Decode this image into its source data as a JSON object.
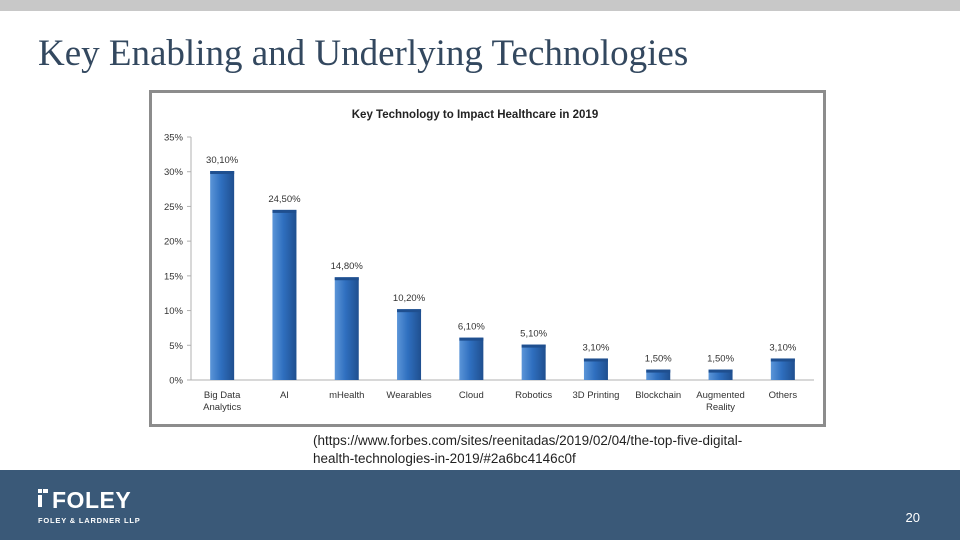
{
  "slide": {
    "title": "Key Enabling and Underlying Technologies",
    "source_line1": "(https://www.forbes.com/sites/reenitadas/2019/02/04/the-top-five-digital-",
    "source_line2": "health-technologies-in-2019/#2a6bc4146c0f",
    "page_number": "20"
  },
  "footer": {
    "logo_text": "FOLEY",
    "logo_subtext": "FOLEY & LARDNER LLP"
  },
  "colors": {
    "bar": "#2f6fbf",
    "bar_light": "#5b95d8",
    "bar_dark": "#1f4f8f",
    "footer": "#3a5978",
    "title": "#33485f"
  },
  "chart_data": {
    "type": "bar",
    "title": "Key Technology to Impact Healthcare  in 2019",
    "categories": [
      [
        "Big Data",
        "Analytics"
      ],
      [
        "AI"
      ],
      [
        "mHealth"
      ],
      [
        "Wearables"
      ],
      [
        "Cloud"
      ],
      [
        "Robotics"
      ],
      [
        "3D Printing"
      ],
      [
        "Blockchain"
      ],
      [
        "Augmented",
        "Reality"
      ],
      [
        "Others"
      ]
    ],
    "values": [
      30.1,
      24.5,
      14.8,
      10.2,
      6.1,
      5.1,
      3.1,
      1.5,
      1.5,
      3.1
    ],
    "data_labels": [
      "30,10%",
      "24,50%",
      "14,80%",
      "10,20%",
      "6,10%",
      "5,10%",
      "3,10%",
      "1,50%",
      "1,50%",
      "3,10%"
    ],
    "ylim": [
      0,
      35
    ],
    "yticks": [
      0,
      5,
      10,
      15,
      20,
      25,
      30,
      35
    ],
    "ytick_labels": [
      "0%",
      "5%",
      "10%",
      "15%",
      "20%",
      "25%",
      "30%",
      "35%"
    ],
    "xlabel": "",
    "ylabel": "",
    "grid": false,
    "legend": "none"
  }
}
